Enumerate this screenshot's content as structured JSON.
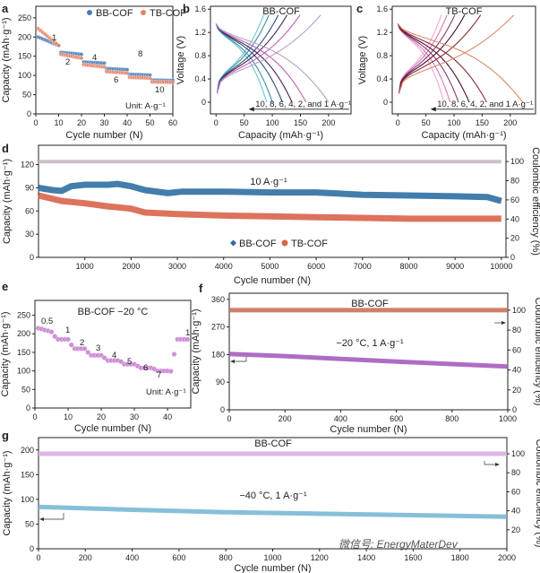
{
  "figure": {
    "watermark": "微信号: EnergyMaterDev"
  },
  "chart_data": [
    {
      "id": "a",
      "panel_label": "a",
      "type": "scatter",
      "title": "",
      "xlabel": "Cycle number (N)",
      "ylabel": "Capacity (mAh·g⁻¹)",
      "xlim": [
        0,
        60
      ],
      "ylim": [
        0,
        280
      ],
      "xticks": [
        0,
        10,
        20,
        30,
        40,
        50,
        60
      ],
      "yticks": [
        0,
        50,
        100,
        150,
        200,
        250
      ],
      "legend": {
        "position": "top",
        "entries": [
          "BB-COF",
          "TB-COF"
        ]
      },
      "annotations": [
        "1",
        "2",
        "4",
        "6",
        "8",
        "10",
        "Unit: A·g⁻¹"
      ],
      "rates": [
        1,
        2,
        4,
        6,
        8,
        10
      ],
      "series": [
        {
          "name": "BB-COF",
          "color": "#4a7fb5",
          "segments": [
            [
              200,
              178
            ],
            [
              160,
              155
            ],
            [
              135,
              132
            ],
            [
              118,
              115
            ],
            [
              103,
              101
            ],
            [
              88,
              87
            ]
          ]
        },
        {
          "name": "TB-COF",
          "color": "#e8836a",
          "segments": [
            [
              222,
              178
            ],
            [
              155,
              145
            ],
            [
              128,
              122
            ],
            [
              110,
              106
            ],
            [
              95,
              93
            ],
            [
              83,
              82
            ]
          ]
        }
      ]
    },
    {
      "id": "b",
      "panel_label": "b",
      "type": "line",
      "title": "BB-COF",
      "xlabel": "Capacity (mAh·g⁻¹)",
      "ylabel": "Voltage (V)",
      "xlim": [
        -10,
        240
      ],
      "ylim": [
        -0.2,
        1.65
      ],
      "xticks": [
        0,
        50,
        100,
        150,
        200
      ],
      "yticks": [
        0.0,
        0.4,
        0.8,
        1.2,
        1.6
      ],
      "annotation": "10, 8, 6, 4, 2, and 1 A·g⁻¹",
      "series": [
        {
          "name": "10 A·g⁻¹",
          "color": "#6fc7c9",
          "capacity": 90
        },
        {
          "name": "8 A·g⁻¹",
          "color": "#3d8ea8",
          "capacity": 100
        },
        {
          "name": "6 A·g⁻¹",
          "color": "#2b4f7a",
          "capacity": 118
        },
        {
          "name": "4 A·g⁻¹",
          "color": "#4a2356",
          "capacity": 135
        },
        {
          "name": "2 A·g⁻¹",
          "color": "#c05fb8",
          "capacity": 160
        },
        {
          "name": "1 A·g⁻¹",
          "color": "#b7a0c4",
          "capacity": 200
        }
      ]
    },
    {
      "id": "c",
      "panel_label": "c",
      "type": "line",
      "title": "TB-COF",
      "xlabel": "Capacity (mAh·g⁻¹)",
      "ylabel": "Voltage (V)",
      "xlim": [
        -10,
        245
      ],
      "ylim": [
        -0.2,
        1.65
      ],
      "xticks": [
        0,
        50,
        100,
        150,
        200
      ],
      "yticks": [
        0.0,
        0.4,
        0.8,
        1.2,
        1.6
      ],
      "annotation": "10, 8, 6, 4, 2, and 1 A·g⁻¹",
      "series": [
        {
          "name": "10 A·g⁻¹",
          "color": "#f0a6d8",
          "capacity": 82
        },
        {
          "name": "8 A·g⁻¹",
          "color": "#d17bb5",
          "capacity": 93
        },
        {
          "name": "6 A·g⁻¹",
          "color": "#8c3a6b",
          "capacity": 108
        },
        {
          "name": "4 A·g⁻¹",
          "color": "#4a1030",
          "capacity": 127
        },
        {
          "name": "2 A·g⁻¹",
          "color": "#8b2a3a",
          "capacity": 158
        },
        {
          "name": "1 A·g⁻¹",
          "color": "#d98b6a",
          "capacity": 222
        }
      ]
    },
    {
      "id": "d",
      "panel_label": "d",
      "type": "line",
      "title": "",
      "xlabel": "Cycle number (N)",
      "ylabel": "Capacity (mAh·g⁻¹)",
      "ylabel_right": "Coulombic efficiency (%)",
      "xlim": [
        0,
        10100
      ],
      "ylim": [
        0,
        145
      ],
      "ylim_right": [
        0,
        117
      ],
      "xticks": [
        1000,
        2000,
        3000,
        4000,
        5000,
        6000,
        7000,
        8000,
        9000,
        10000
      ],
      "yticks": [
        0,
        30,
        60,
        90,
        120
      ],
      "yticks_right": [
        0,
        20,
        40,
        60,
        80,
        100
      ],
      "annotation": "10 A·g⁻¹",
      "legend": {
        "position": "bottom-center",
        "entries": [
          "BB-COF",
          "TB-COF"
        ]
      },
      "series": [
        {
          "name": "BB-COF",
          "color": "#2f6fa3",
          "x": [
            0,
            300,
            500,
            700,
            1000,
            1500,
            1700,
            2000,
            2300,
            2800,
            3100,
            4000,
            5000,
            6000,
            7000,
            8000,
            9000,
            9700,
            10000
          ],
          "y": [
            90,
            87,
            86,
            92,
            94,
            94,
            95,
            92,
            87,
            83,
            85,
            85,
            84,
            84,
            81,
            80,
            79,
            78,
            73
          ]
        },
        {
          "name": "TB-COF",
          "color": "#d9644a",
          "x": [
            0,
            500,
            1000,
            1500,
            2000,
            2300,
            3000,
            4000,
            5000,
            6000,
            7000,
            8000,
            9000,
            10000
          ],
          "y": [
            80,
            73,
            70,
            66,
            63,
            58,
            56,
            54,
            53,
            52,
            51,
            50,
            50,
            50
          ]
        },
        {
          "name": "Coulombic efficiency",
          "axis": "right",
          "color": "#c8b8c4",
          "x": [
            0,
            10000
          ],
          "y": [
            100,
            100
          ]
        }
      ]
    },
    {
      "id": "e",
      "panel_label": "e",
      "type": "scatter",
      "title": "BB-COF −20 °C",
      "xlabel": "Cycle number (N)",
      "ylabel": "Capacity (mAh·g⁻¹)",
      "xlim": [
        0,
        47
      ],
      "ylim": [
        0,
        290
      ],
      "xticks": [
        0,
        10,
        20,
        30,
        40
      ],
      "yticks": [
        0,
        50,
        100,
        150,
        200,
        250
      ],
      "annotations": [
        "0.5",
        "1",
        "2",
        "3",
        "4",
        "5",
        "6",
        "7",
        "1",
        "Unit: A·g⁻¹"
      ],
      "rates": [
        0.5,
        1,
        2,
        3,
        4,
        5,
        6,
        7,
        1
      ],
      "series": [
        {
          "name": "BB-COF −20 °C",
          "color": "#c77fd0",
          "x": [
            1,
            2,
            3,
            4,
            5,
            6,
            7,
            8,
            9,
            10,
            11,
            12,
            13,
            14,
            15,
            16,
            17,
            18,
            19,
            20,
            21,
            22,
            23,
            24,
            25,
            26,
            27,
            28,
            29,
            30,
            31,
            32,
            33,
            34,
            35,
            36,
            37,
            38,
            39,
            40,
            41,
            42,
            43,
            44,
            45,
            46
          ],
          "y": [
            215,
            213,
            210,
            208,
            205,
            193,
            185,
            185,
            185,
            185,
            170,
            160,
            160,
            160,
            160,
            150,
            142,
            142,
            142,
            142,
            135,
            128,
            128,
            128,
            128,
            125,
            118,
            118,
            118,
            118,
            113,
            108,
            108,
            108,
            108,
            105,
            100,
            100,
            100,
            100,
            99,
            145,
            185,
            185,
            185,
            185
          ]
        }
      ]
    },
    {
      "id": "f",
      "panel_label": "f",
      "type": "line",
      "title": "BB-COF",
      "xlabel": "Cycle number (N)",
      "ylabel": "Capacity (mAh·g⁻¹)",
      "ylabel_right": "Coulombic efficiency (%)",
      "xlim": [
        0,
        1000
      ],
      "ylim": [
        0,
        380
      ],
      "ylim_right": [
        0,
        117
      ],
      "xticks": [
        0,
        200,
        400,
        600,
        800,
        1000
      ],
      "yticks": [
        0,
        90,
        180,
        270,
        360
      ],
      "yticks_right": [
        0,
        20,
        40,
        60,
        80,
        100
      ],
      "annotation": "−20 °C, 1 A·g⁻¹",
      "series": [
        {
          "name": "Capacity",
          "axis": "left",
          "color": "#a65cc0",
          "x": [
            0,
            200,
            400,
            600,
            800,
            1000
          ],
          "y": [
            182,
            175,
            166,
            157,
            149,
            141
          ]
        },
        {
          "name": "Coulombic efficiency",
          "axis": "right",
          "color": "#c9735a",
          "x": [
            0,
            1000
          ],
          "y": [
            100,
            100
          ]
        }
      ]
    },
    {
      "id": "g",
      "panel_label": "g",
      "type": "line",
      "title": "BB-COF",
      "xlabel": "Cycle number (N)",
      "ylabel": "Capacity (mAh·g⁻¹)",
      "ylabel_right": "Coulombic efficiency (%)",
      "xlim": [
        0,
        2000
      ],
      "ylim": [
        0,
        225
      ],
      "ylim_right": [
        0,
        117
      ],
      "xticks": [
        0,
        200,
        400,
        600,
        800,
        1000,
        1200,
        1400,
        1600,
        1800,
        2000
      ],
      "yticks": [
        0,
        50,
        100,
        150,
        200
      ],
      "yticks_right": [
        20,
        40,
        60,
        80,
        100
      ],
      "annotation": "−40 °C, 1 A·g⁻¹",
      "series": [
        {
          "name": "Capacity",
          "axis": "left",
          "color": "#79b9d4",
          "x": [
            0,
            400,
            800,
            1200,
            1600,
            2000
          ],
          "y": [
            85,
            79,
            74,
            71,
            68,
            65
          ]
        },
        {
          "name": "Coulombic efficiency",
          "axis": "right",
          "color": "#dcaee6",
          "x": [
            0,
            2000
          ],
          "y": [
            100,
            100
          ]
        }
      ]
    }
  ]
}
